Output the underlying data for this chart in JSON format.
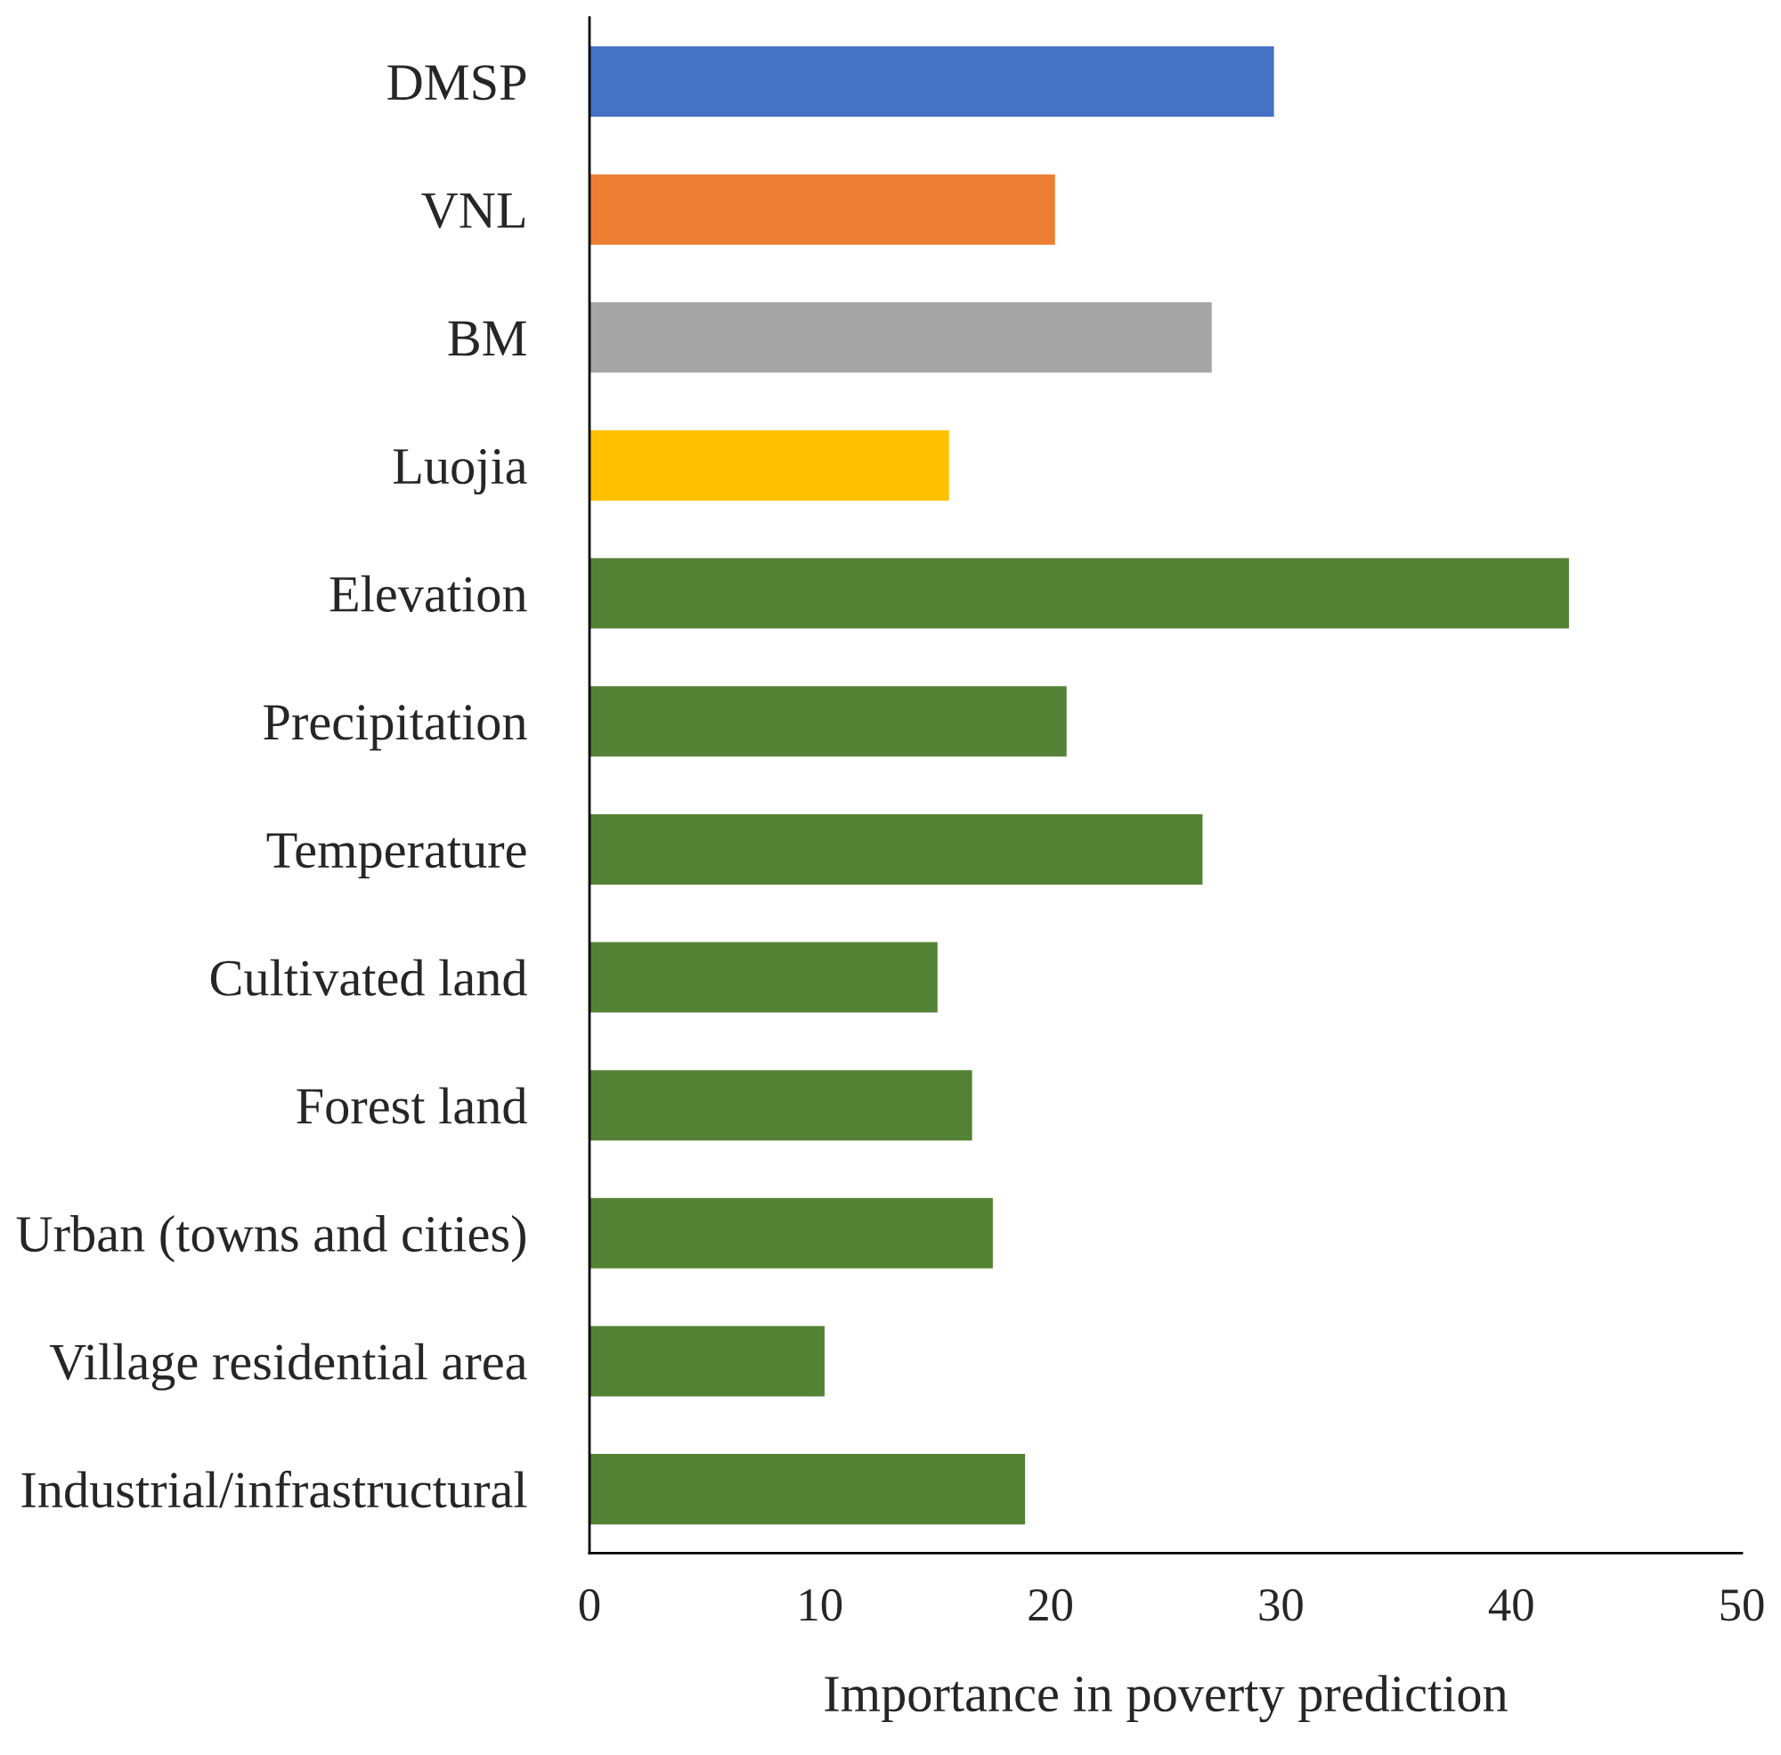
{
  "chart_data": {
    "type": "bar",
    "orientation": "horizontal",
    "xlabel": "Importance in poverty prediction",
    "categories": [
      "DMSP",
      "VNL",
      "BM",
      "Luojia",
      "Elevation",
      "Precipitation",
      "Temperature",
      "Cultivated land",
      "Forest land",
      "Urban (towns and cities)",
      "Village residential area",
      "Industrial/infrastructural"
    ],
    "values": [
      29.7,
      20.2,
      27.0,
      15.6,
      42.5,
      20.7,
      26.6,
      15.1,
      16.6,
      17.5,
      10.2,
      18.9
    ],
    "colors": [
      "#4472c4",
      "#ed7d31",
      "#a5a5a5",
      "#ffc000",
      "#548235",
      "#548235",
      "#548235",
      "#548235",
      "#548235",
      "#548235",
      "#548235",
      "#548235"
    ],
    "xlim": [
      0,
      50
    ],
    "xticks": [
      0,
      10,
      20,
      30,
      40,
      50
    ],
    "grid": false,
    "legend": false
  }
}
